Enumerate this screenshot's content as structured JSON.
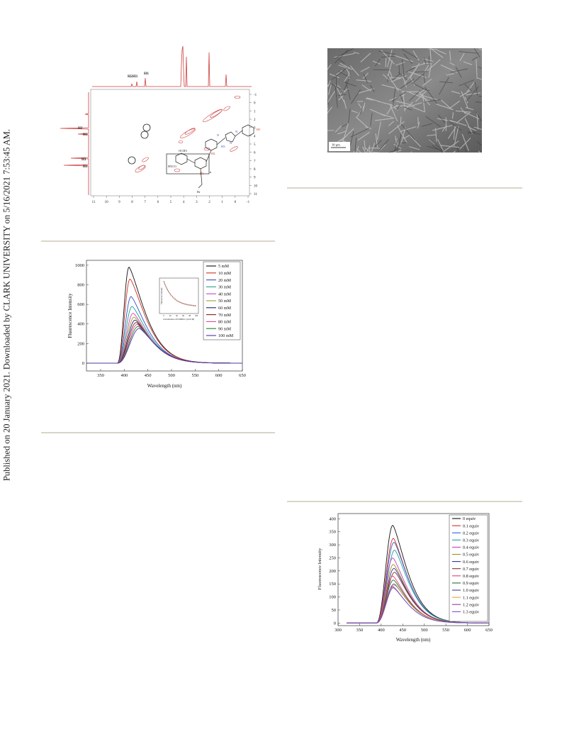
{
  "side_note": "Published on 20 January 2021. Downloaded by CLARK UNIVERSITY on 5/16/2021 7:53:45 AM.",
  "nmr": {
    "top_peaks": [
      "H2H3",
      "H1"
    ],
    "left_peaks": [
      "H2",
      "H1",
      "H3",
      "H1"
    ],
    "x_ticks": [
      "11",
      "10",
      "9",
      "8",
      "7",
      "6",
      "5",
      "4",
      "3",
      "2",
      "1",
      "0",
      "-1"
    ],
    "y_ticks": [
      "-1",
      "0",
      "1",
      "2",
      "3",
      "4",
      "5",
      "6",
      "7",
      "8",
      "9",
      "10",
      "11"
    ],
    "structure_labels": [
      "OCH3",
      "H3CO",
      "N",
      "N",
      "N",
      "H2",
      "H3",
      "H1",
      "H1",
      "n",
      "Br"
    ]
  },
  "sem": {
    "scale_label": "10 µm"
  },
  "chart_data": [
    {
      "type": "line",
      "title": "",
      "xlabel": "Wavelength (nm)",
      "ylabel": "Fluorescence Intensity",
      "xlim": [
        320,
        650
      ],
      "ylim": [
        -80,
        1050
      ],
      "x_ticks": [
        350,
        400,
        450,
        500,
        550,
        600,
        650
      ],
      "y_ticks": [
        0,
        200,
        400,
        600,
        800,
        1000
      ],
      "legend_position": "top-right",
      "series": [
        {
          "name": "5 mM",
          "peak": 980,
          "color": "#111111"
        },
        {
          "name": "10 mM",
          "peak": 860,
          "color": "#d03020"
        },
        {
          "name": "20 mM",
          "peak": 680,
          "color": "#3050c8"
        },
        {
          "name": "30 mM",
          "peak": 580,
          "color": "#20a090"
        },
        {
          "name": "40 mM",
          "peak": 510,
          "color": "#d040c0"
        },
        {
          "name": "50 mM",
          "peak": 470,
          "color": "#a0a020"
        },
        {
          "name": "60 mM",
          "peak": 440,
          "color": "#202080"
        },
        {
          "name": "70 mM",
          "peak": 415,
          "color": "#802020"
        },
        {
          "name": "80 mM",
          "peak": 395,
          "color": "#e04890"
        },
        {
          "name": "90 mM",
          "peak": 375,
          "color": "#208030"
        },
        {
          "name": "100 mM",
          "peak": 355,
          "color": "#5030b0"
        }
      ],
      "inset": {
        "xlabel": "Concentration of P5-BDB-C (x10-6 M)",
        "ylabel": "Fluorescence Intensity",
        "x_ticks": [
          0,
          20,
          40,
          60,
          80,
          100
        ]
      }
    },
    {
      "type": "line",
      "title": "",
      "xlabel": "Wavelength (nm)",
      "ylabel": "Fluorescence Intensity",
      "xlim": [
        300,
        650
      ],
      "ylim": [
        -10,
        420
      ],
      "x_ticks": [
        300,
        350,
        400,
        450,
        500,
        550,
        600,
        650
      ],
      "y_ticks": [
        0,
        50,
        100,
        150,
        200,
        250,
        300,
        350,
        400
      ],
      "legend_position": "top-right",
      "series": [
        {
          "name": "0 equiv",
          "peak": 375,
          "color": "#111111"
        },
        {
          "name": "0.1 equiv",
          "peak": 325,
          "color": "#d03020"
        },
        {
          "name": "0.2 equiv",
          "peak": 310,
          "color": "#3060d0"
        },
        {
          "name": "0.3 equiv",
          "peak": 280,
          "color": "#20a0a0"
        },
        {
          "name": "0.4 equiv",
          "peak": 250,
          "color": "#c040c0"
        },
        {
          "name": "0.5 equiv",
          "peak": 225,
          "color": "#a09020"
        },
        {
          "name": "0.6 equiv",
          "peak": 210,
          "color": "#303090"
        },
        {
          "name": "0.7 equiv",
          "peak": 195,
          "color": "#803030"
        },
        {
          "name": "0.8 equiv",
          "peak": 180,
          "color": "#e04070"
        },
        {
          "name": "0.9 equiv",
          "peak": 165,
          "color": "#207030"
        },
        {
          "name": "1.0 equiv",
          "peak": 150,
          "color": "#404090"
        },
        {
          "name": "1.1 equiv",
          "peak": 145,
          "color": "#e0a040"
        },
        {
          "name": "1.2 equiv",
          "peak": 140,
          "color": "#904090"
        },
        {
          "name": "1.3 equiv",
          "peak": 135,
          "color": "#7050d0"
        }
      ]
    }
  ]
}
